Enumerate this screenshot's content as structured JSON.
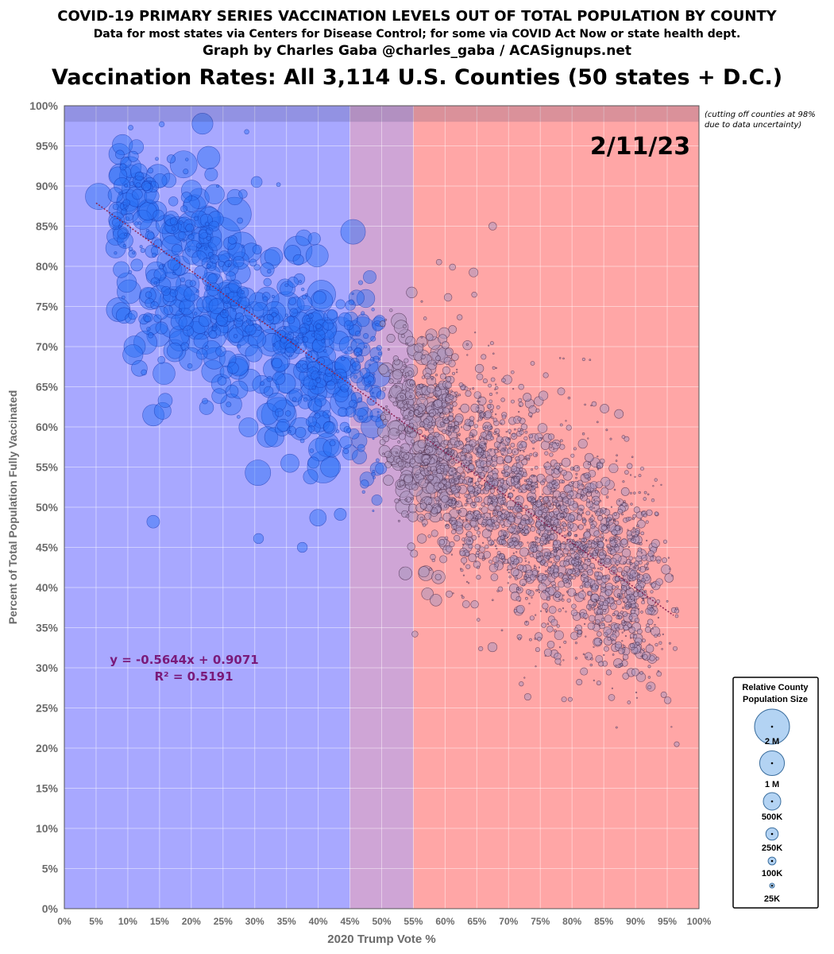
{
  "header": {
    "title": "COVID-19 PRIMARY SERIES VACCINATION LEVELS OUT OF TOTAL POPULATION BY COUNTY",
    "source": "Data for most states via Centers for Disease Control; for some via COVID Act Now or state health dept.",
    "credit": "Graph by Charles Gaba @charles_gaba / ACASignups.net",
    "subtitle": "Vaccination Rates: All 3,114 U.S. Counties (50 states + D.C.)"
  },
  "chart_data": {
    "type": "scatter",
    "date_label": "2/11/23",
    "cutoff_note": [
      "(cutting off counties at 98%",
      "due to data uncertainty)"
    ],
    "xlabel": "2020 Trump Vote %",
    "ylabel": "Percent of Total Population Fully Vaccinated",
    "xlim": [
      0,
      100
    ],
    "ylim": [
      0,
      100
    ],
    "x_ticks": [
      "0%",
      "5%",
      "10%",
      "15%",
      "20%",
      "25%",
      "30%",
      "35%",
      "40%",
      "45%",
      "50%",
      "55%",
      "60%",
      "65%",
      "70%",
      "75%",
      "80%",
      "85%",
      "90%",
      "95%",
      "100%"
    ],
    "y_ticks": [
      "0%",
      "5%",
      "10%",
      "15%",
      "20%",
      "25%",
      "30%",
      "35%",
      "40%",
      "45%",
      "50%",
      "55%",
      "60%",
      "65%",
      "70%",
      "75%",
      "80%",
      "85%",
      "90%",
      "95%",
      "100%"
    ],
    "regions": [
      {
        "from": 0,
        "to": 45,
        "color": "#a8a8ff"
      },
      {
        "from": 45,
        "to": 55,
        "color": "#cfa5d6"
      },
      {
        "from": 55,
        "to": 100,
        "color": "#ffa6a6"
      }
    ],
    "cutoff_band": {
      "from": 98,
      "to": 100,
      "opacity": 0.18
    },
    "trendline": {
      "slope": -0.5644,
      "intercept": 0.9071,
      "x_range": [
        5,
        96
      ],
      "color": "#8b2252"
    },
    "equation_text": "y = -0.5644x + 0.9071",
    "r2_text": "R² = 0.5191",
    "annotation_color": "#7a1a7a",
    "blue_bubble_fill": "rgba(40,110,245,0.45)",
    "blue_bubble_stroke": "rgba(20,50,170,0.6)",
    "red_bubble_fill": "rgba(170,150,190,0.55)",
    "red_bubble_stroke": "rgba(60,30,60,0.65)",
    "point_count": 3114,
    "highlighted_points": [
      {
        "x": 5.4,
        "y": 88.7,
        "pop": 1700000
      },
      {
        "x": 8.5,
        "y": 74.6,
        "pop": 1400000
      },
      {
        "x": 11.8,
        "y": 89.5,
        "pop": 3000000
      },
      {
        "x": 13.2,
        "y": 86.8,
        "pop": 1200000
      },
      {
        "x": 10.8,
        "y": 69.0,
        "pop": 1000000
      },
      {
        "x": 16.5,
        "y": 90.7,
        "pop": 500000
      },
      {
        "x": 18.8,
        "y": 92.7,
        "pop": 1800000
      },
      {
        "x": 17.8,
        "y": 84.0,
        "pop": 3000000
      },
      {
        "x": 17.4,
        "y": 75.5,
        "pop": 2500000
      },
      {
        "x": 20.5,
        "y": 87.5,
        "pop": 1300000
      },
      {
        "x": 22.5,
        "y": 86.0,
        "pop": 1500000
      },
      {
        "x": 24.5,
        "y": 83.5,
        "pop": 4500000
      },
      {
        "x": 22.0,
        "y": 72.0,
        "pop": 5500000
      },
      {
        "x": 25.5,
        "y": 75.5,
        "pop": 4000000
      },
      {
        "x": 26.8,
        "y": 86.5,
        "pop": 2800000
      },
      {
        "x": 28.0,
        "y": 82.5,
        "pop": 2000000
      },
      {
        "x": 27.0,
        "y": 72.0,
        "pop": 1500000
      },
      {
        "x": 26.3,
        "y": 62.8,
        "pop": 1100000
      },
      {
        "x": 15.9,
        "y": 63.3,
        "pop": 500000
      },
      {
        "x": 15.5,
        "y": 62.0,
        "pop": 700000
      },
      {
        "x": 14.0,
        "y": 48.2,
        "pop": 400000
      },
      {
        "x": 30.5,
        "y": 54.3,
        "pop": 1600000
      },
      {
        "x": 32.5,
        "y": 70.5,
        "pop": 1800000
      },
      {
        "x": 33.8,
        "y": 61.5,
        "pop": 3000000
      },
      {
        "x": 35.0,
        "y": 75.0,
        "pop": 2200000
      },
      {
        "x": 35.5,
        "y": 66.0,
        "pop": 2200000
      },
      {
        "x": 36.8,
        "y": 82.0,
        "pop": 2000000
      },
      {
        "x": 38.0,
        "y": 73.0,
        "pop": 2800000
      },
      {
        "x": 40.5,
        "y": 76.5,
        "pop": 2000000
      },
      {
        "x": 41.5,
        "y": 66.0,
        "pop": 3500000
      },
      {
        "x": 40.8,
        "y": 55.0,
        "pop": 2500000
      },
      {
        "x": 43.5,
        "y": 72.0,
        "pop": 1800000
      },
      {
        "x": 45.5,
        "y": 84.3,
        "pop": 1500000
      },
      {
        "x": 44.0,
        "y": 63.0,
        "pop": 1800000
      },
      {
        "x": 30.3,
        "y": 90.5,
        "pop": 300000
      },
      {
        "x": 37.5,
        "y": 45.0,
        "pop": 250000
      },
      {
        "x": 30.6,
        "y": 46.1,
        "pop": 250000
      },
      {
        "x": 47.0,
        "y": 72.0,
        "pop": 1800000
      },
      {
        "x": 49.5,
        "y": 66.5,
        "pop": 1500000
      },
      {
        "x": 48.5,
        "y": 60.0,
        "pop": 1200000
      },
      {
        "x": 47.5,
        "y": 76.0,
        "pop": 800000
      },
      {
        "x": 52.5,
        "y": 56.0,
        "pop": 700000
      },
      {
        "x": 67.5,
        "y": 85.0,
        "pop": 150000
      },
      {
        "x": 72.0,
        "y": 28.0,
        "pop": 50000
      }
    ]
  },
  "legend": {
    "title_line1": "Relative County",
    "title_line2": "Population Size",
    "items": [
      {
        "label": "2 M",
        "pop": 2000000
      },
      {
        "label": "1 M",
        "pop": 1000000
      },
      {
        "label": "500K",
        "pop": 500000
      },
      {
        "label": "250K",
        "pop": 250000
      },
      {
        "label": "100K",
        "pop": 100000
      },
      {
        "label": "25K",
        "pop": 25000
      }
    ]
  }
}
